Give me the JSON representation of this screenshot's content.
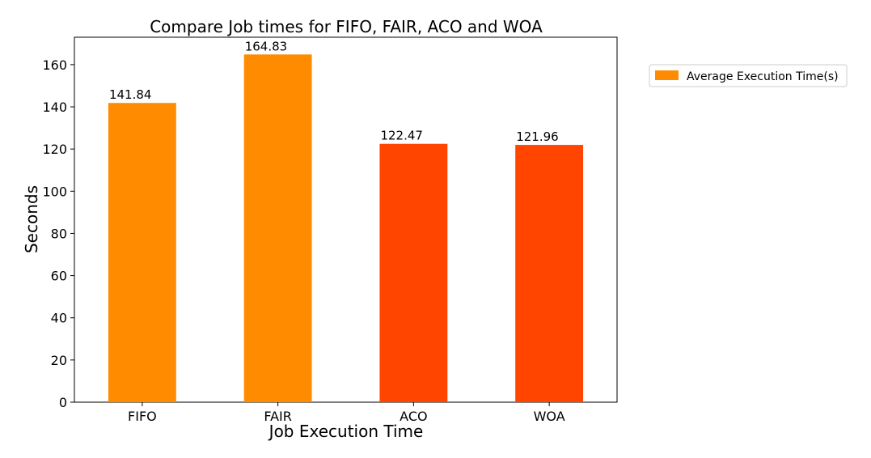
{
  "chart_data": {
    "type": "bar",
    "title": "Compare Job times for FIFO, FAIR, ACO and WOA",
    "xlabel": "Job Execution Time",
    "ylabel": "Seconds",
    "categories": [
      "FIFO",
      "FAIR",
      "ACO",
      "WOA"
    ],
    "series": [
      {
        "name": "Average Execution Time(s)",
        "values": [
          141.84,
          164.83,
          122.47,
          121.96
        ],
        "value_labels": [
          "141.84",
          "164.83",
          "122.47",
          "121.96"
        ],
        "colors": [
          "#ff8c00",
          "#ff8c00",
          "#ff4500",
          "#ff4500"
        ],
        "legend_color": "#ff8c00"
      }
    ],
    "ylim": [
      0,
      173
    ],
    "yticks": [
      0,
      20,
      40,
      60,
      80,
      100,
      120,
      140,
      160
    ],
    "ytick_labels": [
      "0",
      "20",
      "40",
      "60",
      "80",
      "100",
      "120",
      "140",
      "160"
    ],
    "grid": false,
    "legend_position": "outside-top-right"
  }
}
